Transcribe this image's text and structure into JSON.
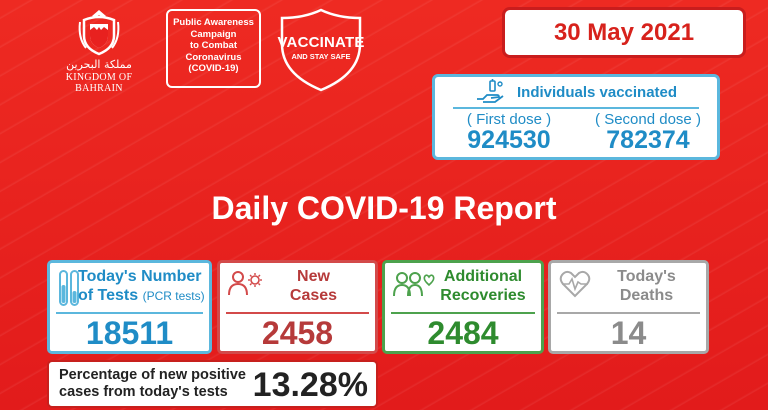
{
  "header": {
    "emblem_arabic": "مملكة البحرين",
    "emblem_english": "KINGDOM OF BAHRAIN",
    "campaign_lines": [
      "Public Awareness",
      "Campaign",
      "to Combat",
      "Coronavirus",
      "(COVID-19)"
    ],
    "vaccinate_title": "VACCINATE",
    "vaccinate_sub": "AND STAY SAFE",
    "date": "30 May 2021"
  },
  "vaccination": {
    "title": "Individuals vaccinated",
    "first_label": "( First dose )",
    "first_value": "924530",
    "second_label": "( Second dose )",
    "second_value": "782374"
  },
  "report": {
    "title": "Daily COVID-19 Report"
  },
  "stats": {
    "tests_label_1": "Today's Number",
    "tests_label_2": "of Tests",
    "tests_label_small": "(PCR tests)",
    "tests_value": "18511",
    "cases_label_1": "New",
    "cases_label_2": "Cases",
    "cases_value": "2458",
    "recoveries_label_1": "Additional",
    "recoveries_label_2": "Recoveries",
    "recoveries_value": "2484",
    "deaths_label_1": "Today's",
    "deaths_label_2": "Deaths",
    "deaths_value": "14"
  },
  "positivity": {
    "label_1": "Percentage of new positive",
    "label_2": "cases from today's tests",
    "value": "13.28%"
  },
  "colors": {
    "background": "#e8211f",
    "tests": "#1f8cc6",
    "cases": "#b63a3a",
    "recoveries": "#2e8b2e",
    "deaths": "#8b8b8b"
  },
  "icons": [
    "bahrain-emblem-icon",
    "shield-icon",
    "vaccine-hand-icon",
    "test-tubes-icon",
    "person-virus-icon",
    "people-heart-icon",
    "heart-pulse-icon"
  ]
}
